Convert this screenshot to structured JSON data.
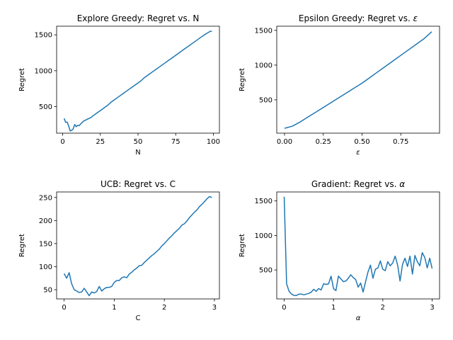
{
  "chart_data": [
    {
      "type": "line",
      "title": "Explore Greedy: Regret vs. N",
      "xlabel": "N",
      "ylabel": "Regret",
      "xlim": [
        -4,
        104
      ],
      "ylim": [
        130,
        1620
      ],
      "xticks": [
        0,
        25,
        50,
        75,
        100
      ],
      "yticks": [
        500,
        1000,
        1500
      ],
      "xtick_labels": [
        "0",
        "25",
        "50",
        "75",
        "100"
      ],
      "ytick_labels": [
        "500",
        "1000",
        "1500"
      ],
      "x": [
        1,
        2,
        3,
        4,
        5,
        6,
        7,
        8,
        9,
        10,
        11,
        12,
        13,
        14,
        15,
        16,
        17,
        18,
        19,
        20,
        22,
        24,
        26,
        28,
        30,
        32,
        34,
        36,
        38,
        40,
        42,
        44,
        46,
        48,
        50,
        52,
        54,
        56,
        58,
        60,
        62,
        64,
        66,
        68,
        70,
        72,
        74,
        76,
        78,
        80,
        82,
        84,
        86,
        88,
        90,
        92,
        94,
        96,
        98,
        99
      ],
      "y": [
        335,
        280,
        285,
        230,
        160,
        170,
        190,
        250,
        220,
        240,
        235,
        260,
        280,
        300,
        310,
        320,
        330,
        340,
        350,
        370,
        400,
        430,
        460,
        490,
        520,
        560,
        590,
        620,
        650,
        680,
        710,
        740,
        770,
        800,
        830,
        860,
        900,
        930,
        960,
        990,
        1020,
        1050,
        1080,
        1110,
        1140,
        1170,
        1200,
        1230,
        1260,
        1290,
        1320,
        1350,
        1380,
        1410,
        1440,
        1470,
        1500,
        1525,
        1550,
        1550
      ]
    },
    {
      "type": "line",
      "title": "Epsilon Greedy: Regret vs. ",
      "title_symbol": "ε",
      "xlabel": "ε",
      "ylabel": "Regret",
      "xlim": [
        -0.05,
        1.0
      ],
      "ylim": [
        20,
        1560
      ],
      "xticks": [
        0.0,
        0.25,
        0.5,
        0.75
      ],
      "yticks": [
        500,
        1000,
        1500
      ],
      "xtick_labels": [
        "0.00",
        "0.25",
        "0.50",
        "0.75"
      ],
      "ytick_labels": [
        "500",
        "1000",
        "1500"
      ],
      "x": [
        0.0,
        0.05,
        0.1,
        0.15,
        0.2,
        0.25,
        0.3,
        0.35,
        0.4,
        0.45,
        0.5,
        0.55,
        0.6,
        0.65,
        0.7,
        0.75,
        0.8,
        0.85,
        0.9,
        0.95
      ],
      "y": [
        90,
        120,
        180,
        250,
        320,
        390,
        460,
        530,
        600,
        670,
        740,
        820,
        900,
        980,
        1060,
        1140,
        1220,
        1300,
        1380,
        1480
      ]
    },
    {
      "type": "line",
      "title": "UCB: Regret vs. C",
      "xlabel": "C",
      "ylabel": "Regret",
      "xlim": [
        -0.15,
        3.1
      ],
      "ylim": [
        30,
        262
      ],
      "xticks": [
        0,
        1,
        2,
        3
      ],
      "yticks": [
        50,
        100,
        150,
        200,
        250
      ],
      "xtick_labels": [
        "0",
        "1",
        "2",
        "3"
      ],
      "ytick_labels": [
        "50",
        "100",
        "150",
        "200",
        "250"
      ],
      "x": [
        0.0,
        0.05,
        0.1,
        0.15,
        0.2,
        0.25,
        0.3,
        0.35,
        0.4,
        0.45,
        0.5,
        0.55,
        0.6,
        0.65,
        0.7,
        0.75,
        0.8,
        0.85,
        0.9,
        0.95,
        1.0,
        1.05,
        1.1,
        1.15,
        1.2,
        1.25,
        1.3,
        1.35,
        1.4,
        1.45,
        1.5,
        1.55,
        1.6,
        1.65,
        1.7,
        1.75,
        1.8,
        1.85,
        1.9,
        1.95,
        2.0,
        2.05,
        2.1,
        2.15,
        2.2,
        2.25,
        2.3,
        2.35,
        2.4,
        2.45,
        2.5,
        2.55,
        2.6,
        2.65,
        2.7,
        2.75,
        2.8,
        2.85,
        2.9,
        2.95
      ],
      "y": [
        85,
        75,
        87,
        63,
        50,
        47,
        44,
        45,
        53,
        45,
        37,
        45,
        43,
        46,
        57,
        47,
        52,
        55,
        55,
        57,
        66,
        70,
        70,
        76,
        78,
        76,
        84,
        88,
        93,
        97,
        102,
        103,
        109,
        114,
        119,
        124,
        128,
        133,
        138,
        145,
        150,
        156,
        162,
        167,
        173,
        178,
        183,
        190,
        193,
        199,
        206,
        212,
        218,
        223,
        230,
        235,
        241,
        247,
        252,
        250
      ]
    },
    {
      "type": "line",
      "title": "Gradient: Regret vs. ",
      "title_symbol": "α",
      "xlabel": "α",
      "ylabel": "Regret",
      "xlim": [
        -0.15,
        3.15
      ],
      "ylim": [
        80,
        1630
      ],
      "xticks": [
        0,
        1,
        2,
        3
      ],
      "yticks": [
        500,
        1000,
        1500
      ],
      "xtick_labels": [
        "0",
        "1",
        "2",
        "3"
      ],
      "ytick_labels": [
        "500",
        "1000",
        "1500"
      ],
      "x": [
        0.0,
        0.05,
        0.1,
        0.15,
        0.2,
        0.25,
        0.3,
        0.35,
        0.4,
        0.45,
        0.5,
        0.55,
        0.6,
        0.65,
        0.7,
        0.75,
        0.8,
        0.85,
        0.9,
        0.95,
        1.0,
        1.05,
        1.1,
        1.15,
        1.2,
        1.25,
        1.3,
        1.35,
        1.4,
        1.45,
        1.5,
        1.55,
        1.6,
        1.65,
        1.7,
        1.75,
        1.8,
        1.85,
        1.9,
        1.95,
        2.0,
        2.05,
        2.1,
        2.15,
        2.2,
        2.25,
        2.3,
        2.35,
        2.4,
        2.45,
        2.5,
        2.55,
        2.6,
        2.65,
        2.7,
        2.75,
        2.8,
        2.85,
        2.9,
        2.95,
        3.0
      ],
      "y": [
        1560,
        300,
        190,
        150,
        130,
        130,
        150,
        150,
        140,
        150,
        160,
        180,
        220,
        190,
        230,
        210,
        300,
        290,
        300,
        410,
        230,
        200,
        410,
        370,
        330,
        340,
        380,
        430,
        390,
        360,
        250,
        310,
        180,
        330,
        470,
        570,
        380,
        510,
        530,
        630,
        510,
        490,
        620,
        560,
        600,
        700,
        570,
        340,
        580,
        670,
        550,
        700,
        440,
        710,
        620,
        560,
        750,
        680,
        530,
        670,
        520
      ]
    }
  ]
}
